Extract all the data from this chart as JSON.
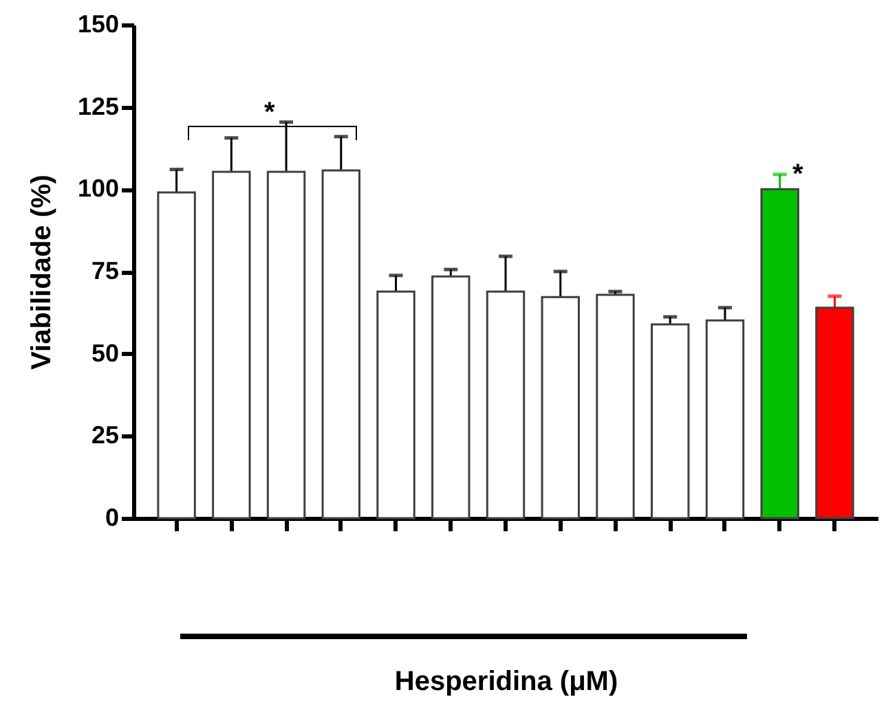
{
  "chart_data": {
    "type": "bar",
    "ylabel": "Viabilidade (%)",
    "xlabel": "Hesperidina (μM)",
    "categories": [
      null,
      null,
      null,
      null,
      null,
      null,
      null,
      null,
      null,
      null,
      null,
      null,
      null
    ],
    "values": [
      99,
      105.3,
      105.3,
      105.7,
      68.9,
      73.5,
      68.9,
      67.2,
      67.9,
      58.9,
      60.1,
      100,
      64
    ],
    "errors": [
      7,
      10.3,
      15.1,
      10.3,
      4.9,
      2.1,
      10.7,
      7.8,
      1,
      2.3,
      3.9,
      4.5,
      3.5
    ],
    "colors": [
      "#ffffff",
      "#ffffff",
      "#ffffff",
      "#ffffff",
      "#ffffff",
      "#ffffff",
      "#ffffff",
      "#ffffff",
      "#ffffff",
      "#ffffff",
      "#ffffff",
      "#00c000",
      "#ff0000"
    ],
    "ylim": [
      0,
      150
    ],
    "yticks": [
      0,
      25,
      50,
      75,
      100,
      125,
      150
    ],
    "grid": false,
    "tick_labels": "y",
    "annotations": [
      "*",
      "*"
    ]
  }
}
